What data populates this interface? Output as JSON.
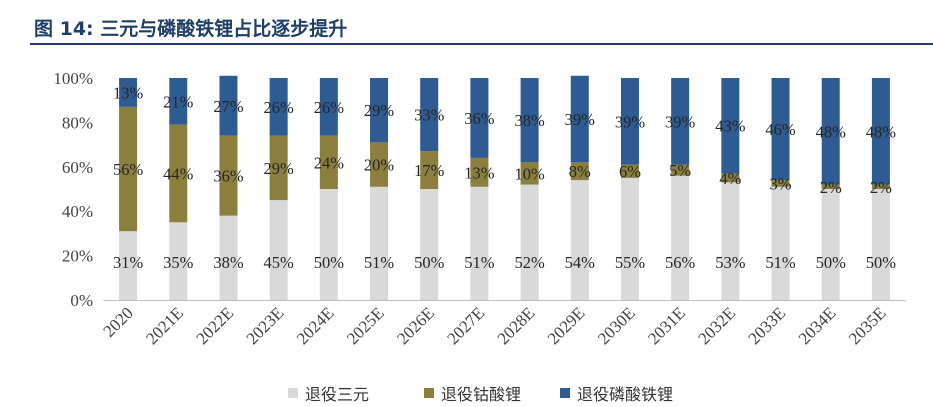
{
  "figure": {
    "title": "图 14:  三元与磷酸铁锂占比逐步提升"
  },
  "chart_data": {
    "type": "bar",
    "stacked": true,
    "categories": [
      "2020",
      "2021E",
      "2022E",
      "2023E",
      "2024E",
      "2025E",
      "2026E",
      "2027E",
      "2028E",
      "2029E",
      "2030E",
      "2031E",
      "2032E",
      "2033E",
      "2034E",
      "2035E"
    ],
    "series": [
      {
        "name": "退役三元",
        "color": "#d9d9d9",
        "values": [
          31,
          35,
          38,
          45,
          50,
          51,
          50,
          51,
          52,
          54,
          55,
          56,
          53,
          51,
          50,
          50
        ],
        "labels": [
          "31%",
          "35%",
          "38%",
          "45%",
          "50%",
          "51%",
          "50%",
          "51%",
          "52%",
          "54%",
          "55%",
          "56%",
          "53%",
          "51%",
          "50%",
          "50%"
        ]
      },
      {
        "name": "退役钴酸锂",
        "color": "#8b7f3e",
        "values": [
          56,
          44,
          36,
          29,
          24,
          20,
          17,
          13,
          10,
          8,
          6,
          5,
          4,
          3,
          2,
          2
        ],
        "labels": [
          "56%",
          "44%",
          "36%",
          "29%",
          "24%",
          "20%",
          "17%",
          "13%",
          "10%",
          "8%",
          "6%",
          "5%",
          "4%",
          "3%",
          "2%",
          "2%"
        ]
      },
      {
        "name": "退役磷酸铁锂",
        "color": "#2e5b92",
        "values": [
          13,
          21,
          27,
          26,
          26,
          29,
          33,
          36,
          38,
          39,
          39,
          39,
          43,
          46,
          48,
          48
        ],
        "labels": [
          "13%",
          "21%",
          "27%",
          "26%",
          "26%",
          "29%",
          "33%",
          "36%",
          "38%",
          "39%",
          "39%",
          "39%",
          "43%",
          "46%",
          "48%",
          "48%"
        ]
      }
    ],
    "y_ticks": [
      "0%",
      "20%",
      "40%",
      "60%",
      "80%",
      "100%"
    ],
    "ylim": [
      0,
      100
    ],
    "grid": false,
    "legend_position": "bottom"
  }
}
